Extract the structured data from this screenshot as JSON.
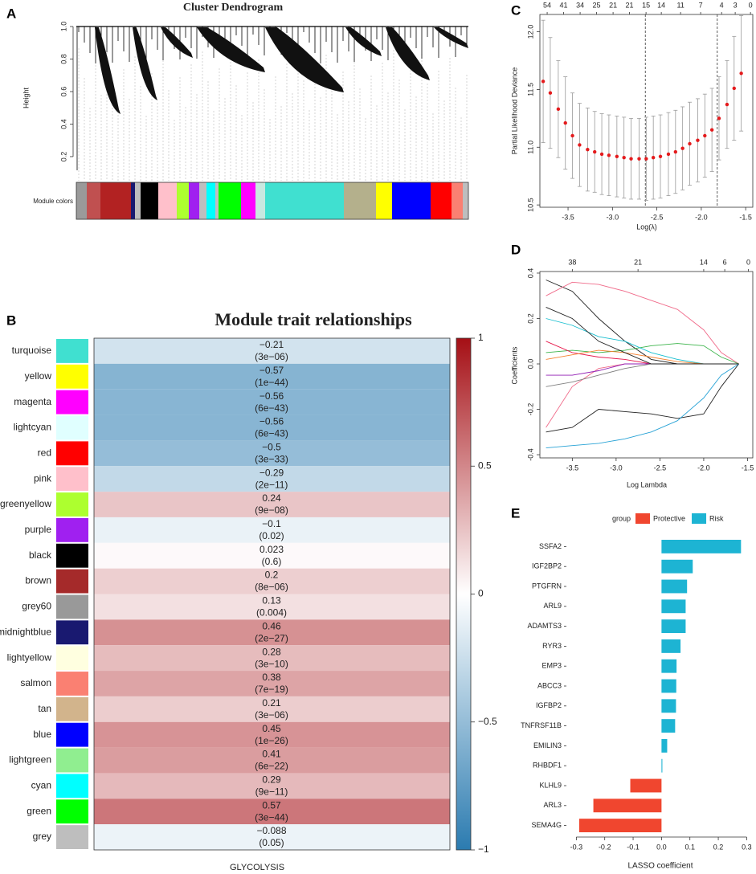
{
  "chart_data": [
    {
      "type": "dendrogram",
      "panel": "A",
      "title": "Cluster Dendrogram",
      "ylabel": "Height",
      "module_label": "Module colors",
      "ylim": [
        0.101,
        1.015
      ],
      "yticks": [
        0.2,
        0.4,
        0.6,
        0.8,
        {
          "value": 1,
          "label": "1.0"
        }
      ]
    },
    {
      "type": "heatmap",
      "panel": "B",
      "title": "Module trait relationships",
      "xlabel": "GLYCOLYSIS",
      "categories": [
        "turquoise",
        "yellow",
        "magenta",
        "lightcyan",
        "red",
        "pink",
        "greenyellow",
        "purple",
        "black",
        "brown",
        "grey60",
        "midnightblue",
        "lightyellow",
        "salmon",
        "tan",
        "blue",
        "lightgreen",
        "cyan",
        "green",
        "grey"
      ],
      "colors": [
        "#40e0d0",
        "#ffff00",
        "#ff00ff",
        "#e0ffff",
        "#ff0000",
        "#ffc0cb",
        "#adff2f",
        "#a020f0",
        "#000000",
        "#a52a2a",
        "#999999",
        "#191970",
        "#ffffe0",
        "#fa8072",
        "#d2b48c",
        "#0000ff",
        "#90ee90",
        "#00ffff",
        "#00ff00",
        "#bebebe"
      ],
      "values": [
        -0.21,
        -0.57,
        -0.56,
        -0.56,
        -0.5,
        -0.29,
        0.24,
        -0.1,
        0.023,
        0.2,
        0.13,
        0.46,
        0.28,
        0.38,
        0.21,
        0.45,
        0.41,
        0.29,
        0.57,
        -0.088
      ],
      "value_labels": [
        "−0.21",
        "−0.57",
        "−0.56",
        "−0.56",
        "−0.5",
        "−0.29",
        "0.24",
        "−0.1",
        "0.023",
        "0.2",
        "0.13",
        "0.46",
        "0.28",
        "0.38",
        "0.21",
        "0.45",
        "0.41",
        "0.29",
        "0.57",
        "−0.088"
      ],
      "pvalues": [
        "(3e−06)",
        "(1e−44)",
        "(6e−43)",
        "(6e−43)",
        "(3e−33)",
        "(2e−11)",
        "(9e−08)",
        "(0.02)",
        "(0.6)",
        "(8e−06)",
        "(0.004)",
        "(2e−27)",
        "(3e−10)",
        "(7e−19)",
        "(3e−06)",
        "(1e−26)",
        "(6e−22)",
        "(9e−11)",
        "(3e−44)",
        "(0.05)"
      ],
      "clim": [
        -1,
        1
      ],
      "colorscale": [
        "#2b7bb0",
        "#ffffff",
        "#a50f15"
      ],
      "cticks": [
        {
          "value": -1,
          "label": "−1"
        },
        {
          "value": -0.5,
          "label": "−0.5"
        },
        0,
        0.5,
        1
      ]
    },
    {
      "type": "errorbar",
      "panel": "C",
      "xlabel": "Log(λ)",
      "ylabel": "Partial Likelihood Deviance",
      "color": "#e41a1c",
      "error_color": "#9a9a9a",
      "x": [
        -3.78,
        -3.7,
        -3.61,
        -3.53,
        -3.45,
        -3.37,
        -3.28,
        -3.2,
        -3.12,
        -3.04,
        -2.95,
        -2.87,
        -2.79,
        -2.7,
        -2.62,
        -2.54,
        -2.46,
        -2.37,
        -2.29,
        -2.21,
        -2.13,
        -2.04,
        -1.96,
        -1.88,
        -1.8,
        -1.71,
        -1.63,
        -1.55
      ],
      "values": [
        11.57,
        11.47,
        11.33,
        11.21,
        11.1,
        11.02,
        10.98,
        10.96,
        10.94,
        10.93,
        10.92,
        10.91,
        10.9,
        10.9,
        10.9,
        10.91,
        10.92,
        10.94,
        10.96,
        10.99,
        11.03,
        11.06,
        11.1,
        11.15,
        11.25,
        11.37,
        11.51,
        11.64
      ],
      "errors": [
        0.53,
        0.48,
        0.42,
        0.4,
        0.37,
        0.36,
        0.36,
        0.35,
        0.35,
        0.35,
        0.35,
        0.35,
        0.35,
        0.35,
        0.36,
        0.36,
        0.36,
        0.36,
        0.36,
        0.36,
        0.36,
        0.36,
        0.36,
        0.36,
        0.36,
        0.38,
        0.45,
        0.5
      ],
      "xlim": [
        -3.817,
        -1.42
      ],
      "ylim": [
        10.48,
        12.15
      ],
      "xticks": [
        -3.5,
        {
          "value": -3,
          "label": "-3.0"
        },
        -2.5,
        {
          "value": -2,
          "label": "-2.0"
        },
        -1.5
      ],
      "yticks": [
        10.5,
        {
          "value": 11,
          "label": "11.0"
        },
        11.5,
        {
          "value": 12,
          "label": "12.0"
        }
      ],
      "x2ticks": [
        {
          "value": -3.735,
          "label": "54"
        },
        {
          "value": -3.55,
          "label": "41"
        },
        {
          "value": -3.364,
          "label": "34"
        },
        {
          "value": -3.179,
          "label": "25"
        },
        {
          "value": -2.993,
          "label": "21"
        },
        {
          "value": -2.808,
          "label": "21"
        },
        {
          "value": -2.622,
          "label": "15"
        },
        {
          "value": -2.45,
          "label": "14"
        },
        {
          "value": -2.233,
          "label": "11"
        },
        {
          "value": -2.007,
          "label": "7"
        },
        {
          "value": -1.771,
          "label": "4"
        },
        {
          "value": -1.618,
          "label": "3"
        },
        {
          "value": -1.446,
          "label": "0"
        }
      ],
      "vlines": [
        -2.63,
        -1.82
      ]
    },
    {
      "type": "lines",
      "panel": "D",
      "xlabel": "Log Lambda",
      "ylabel": "Coefficients",
      "x": [
        -3.8,
        -3.5,
        -3.2,
        -2.9,
        -2.6,
        -2.3,
        -2.0,
        -1.8,
        -1.6
      ],
      "series": [
        {
          "color": "#222222",
          "values": [
            0.37,
            0.32,
            0.2,
            0.1,
            0.02,
            0,
            0,
            0,
            0
          ]
        },
        {
          "color": "#f06b8a",
          "values": [
            0.3,
            0.36,
            0.35,
            0.32,
            0.28,
            0.24,
            0.15,
            0.05,
            0
          ]
        },
        {
          "color": "#222222",
          "values": [
            -0.3,
            -0.28,
            -0.2,
            -0.21,
            -0.22,
            -0.24,
            -0.22,
            -0.1,
            0
          ]
        },
        {
          "color": "#29a3d6",
          "values": [
            -0.37,
            -0.36,
            -0.35,
            -0.33,
            -0.3,
            -0.25,
            -0.15,
            -0.05,
            0
          ]
        },
        {
          "color": "#f06b8a",
          "values": [
            -0.28,
            -0.1,
            -0.02,
            0,
            0,
            0,
            0,
            0,
            0
          ]
        },
        {
          "color": "#3cb44b",
          "values": [
            0.05,
            0.06,
            0.05,
            0.06,
            0.08,
            0.09,
            0.08,
            0.03,
            0
          ]
        },
        {
          "color": "#17becf",
          "values": [
            0.2,
            0.17,
            0.12,
            0.1,
            0.05,
            0.02,
            0,
            0,
            0
          ]
        },
        {
          "color": "#e6194b",
          "values": [
            0.1,
            0.05,
            0.03,
            0.02,
            0,
            0,
            0,
            0,
            0
          ]
        },
        {
          "color": "#911eb4",
          "values": [
            -0.05,
            -0.05,
            -0.03,
            0,
            0,
            0,
            0,
            0,
            0
          ]
        },
        {
          "color": "#f58231",
          "values": [
            0.02,
            0.04,
            0.06,
            0.05,
            0.03,
            0.01,
            0,
            0,
            0
          ]
        },
        {
          "color": "#808080",
          "values": [
            -0.1,
            -0.08,
            -0.05,
            -0.02,
            0,
            0,
            0,
            0,
            0
          ]
        },
        {
          "color": "#222222",
          "values": [
            0.25,
            0.2,
            0.1,
            0.05,
            0,
            0,
            0,
            0,
            0
          ]
        }
      ],
      "xlim": [
        -3.87,
        -1.44
      ],
      "ylim": [
        -0.414,
        0.407
      ],
      "xticks": [
        -3.5,
        {
          "value": -3,
          "label": "-3.0"
        },
        -2.5,
        {
          "value": -2,
          "label": "-2.0"
        },
        -1.5
      ],
      "yticks": [
        -0.4,
        -0.2,
        {
          "value": 0,
          "label": "0.0"
        },
        0.2,
        0.4
      ],
      "x2ticks": [
        {
          "value": -3.5,
          "label": "38"
        },
        {
          "value": -2.75,
          "label": "21"
        },
        {
          "value": -2.0,
          "label": "14"
        },
        {
          "value": -1.76,
          "label": "6"
        },
        {
          "value": -1.49,
          "label": "0"
        }
      ]
    },
    {
      "type": "hbar",
      "panel": "E",
      "xlabel": "LASSO coefficient",
      "legend_title": "group",
      "legend": [
        {
          "name": "Protective",
          "color": "#f0462f"
        },
        {
          "name": "Risk",
          "color": "#1db4d3"
        }
      ],
      "categories": [
        "SSFA2",
        "IGF2BP2",
        "PTGFRN",
        "ARL9",
        "ADAMTS3",
        "RYR3",
        "EMP3",
        "ABCC3",
        "IGFBP2",
        "TNFRSF11B",
        "EMILIN3",
        "RHBDF1",
        "KLHL9",
        "ARL3",
        "SEMA4G"
      ],
      "values": [
        0.28,
        0.11,
        0.09,
        0.085,
        0.085,
        0.067,
        0.053,
        0.052,
        0.051,
        0.048,
        0.02,
        0.003,
        -0.11,
        -0.24,
        -0.29
      ],
      "groups": [
        "Risk",
        "Risk",
        "Risk",
        "Risk",
        "Risk",
        "Risk",
        "Risk",
        "Risk",
        "Risk",
        "Risk",
        "Risk",
        "Risk",
        "Protective",
        "Protective",
        "Protective"
      ],
      "xlim": [
        -0.335,
        0.33
      ],
      "xticks": [
        -0.3,
        -0.2,
        -0.1,
        {
          "value": 0,
          "label": "0.0"
        },
        0.1,
        0.2,
        0.3
      ]
    }
  ]
}
